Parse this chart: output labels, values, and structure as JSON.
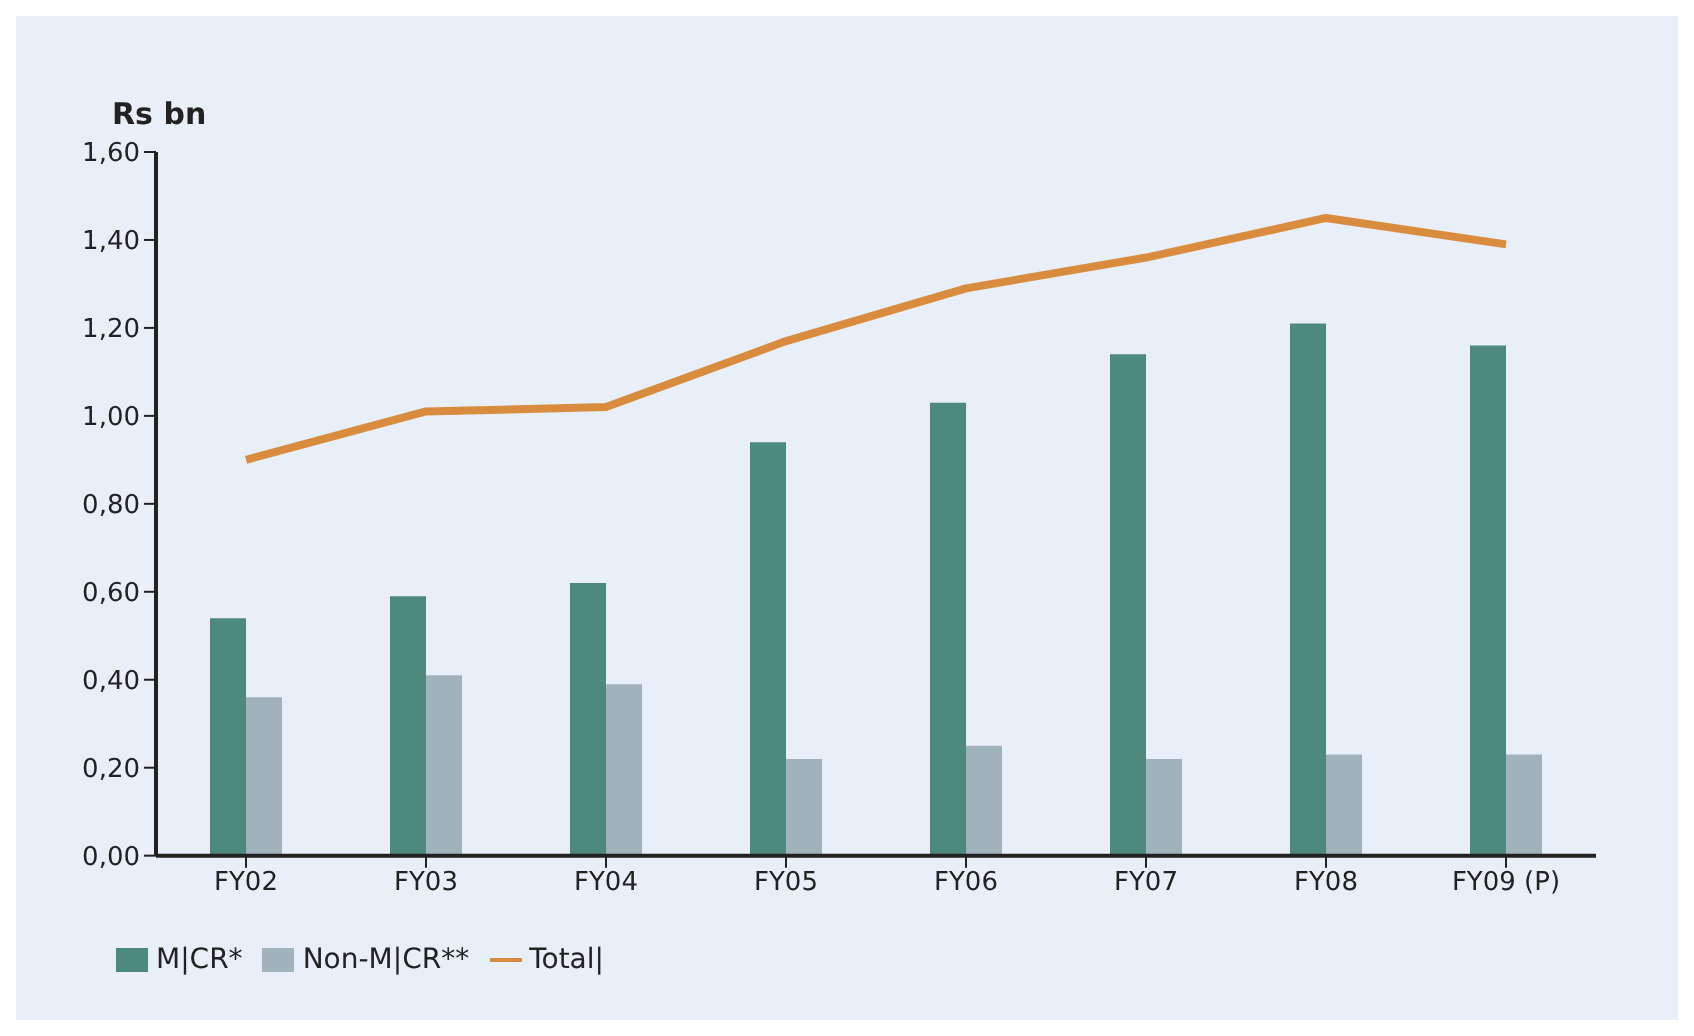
{
  "chart_data": {
    "type": "bar",
    "ylabel": "Rs bn",
    "categories": [
      "FY02",
      "FY03",
      "FY04",
      "FY05",
      "FY06",
      "FY07",
      "FY08",
      "FY09 (P)"
    ],
    "series": [
      {
        "name": "M|CR*",
        "color": "#4e897e",
        "values": [
          0.54,
          0.59,
          0.62,
          0.94,
          1.03,
          1.14,
          1.21,
          1.16
        ]
      },
      {
        "name": "Non-M|CR**",
        "color": "#a0b3bd",
        "values": [
          0.36,
          0.41,
          0.39,
          0.22,
          0.25,
          0.22,
          0.23,
          0.23
        ]
      },
      {
        "name": "Total|",
        "type": "line",
        "color": "#d98c3e",
        "values": [
          0.9,
          1.01,
          1.02,
          1.17,
          1.29,
          1.36,
          1.45,
          1.39
        ]
      }
    ],
    "ylim": [
      0,
      1.6
    ],
    "yticks": [
      {
        "value": 0,
        "label": "0,00"
      },
      {
        "value": 0.2,
        "label": "0,20"
      },
      {
        "value": 0.4,
        "label": "0,40"
      },
      {
        "value": 0.6,
        "label": "0,60"
      },
      {
        "value": 0.8,
        "label": "0,80"
      },
      {
        "value": 1.0,
        "label": "1,00"
      },
      {
        "value": 1.2,
        "label": "1,20"
      },
      {
        "value": 1.4,
        "label": "1,40"
      },
      {
        "value": 1.6,
        "label": "1,60"
      }
    ],
    "grid": false,
    "legend": "bottom",
    "marker": "none"
  }
}
